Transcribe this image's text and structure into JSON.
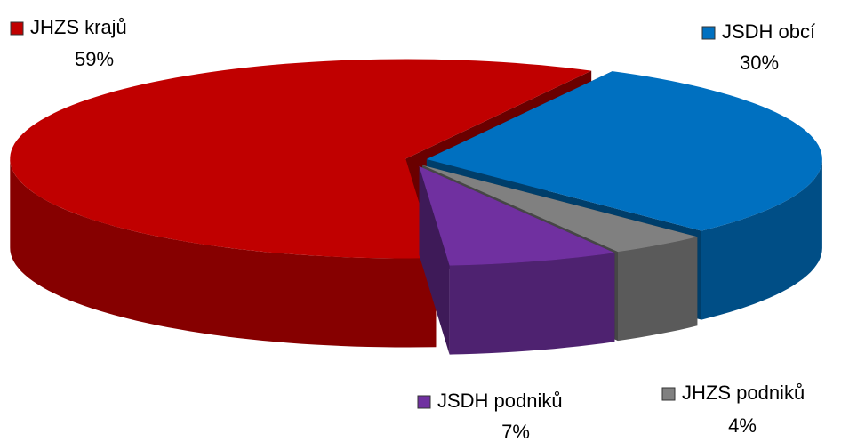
{
  "chart_data": {
    "type": "pie",
    "categories": [
      "JSDH obcí",
      "JHZS podniků",
      "JSDH podniků",
      "JHZS krajů"
    ],
    "values": [
      30,
      4,
      7,
      59
    ],
    "value_labels": [
      "30%",
      "4%",
      "7%",
      "59%"
    ],
    "colors": [
      "#0070c0",
      "#808080",
      "#7030a0",
      "#c00000"
    ]
  }
}
